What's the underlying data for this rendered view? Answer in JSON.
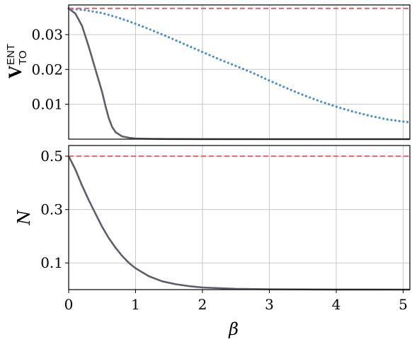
{
  "colors": {
    "series_dark": "#5f5f6b",
    "series_dotted": "#4a90d0",
    "reference": "#e06a6a"
  },
  "chart_data": [
    {
      "type": "line",
      "ylabel_main": "V",
      "ylabel_sup": "ENT",
      "ylabel_sub": "TO",
      "xlim": [
        0,
        5.1
      ],
      "ylim": [
        0,
        0.0385
      ],
      "yticks": [
        "0.01",
        "0.02",
        "0.03"
      ],
      "ytick_values": [
        0.01,
        0.02,
        0.03
      ],
      "grid": true,
      "series": [
        {
          "style": "solid",
          "x": [
            0,
            0.1,
            0.2,
            0.3,
            0.4,
            0.5,
            0.55,
            0.6,
            0.65,
            0.7,
            0.8,
            0.9,
            1.0,
            1.2,
            1.5,
            2.0,
            3.0,
            4.0,
            5.1
          ],
          "y": [
            0.0375,
            0.036,
            0.0325,
            0.0265,
            0.02,
            0.0135,
            0.0095,
            0.006,
            0.0035,
            0.002,
            0.0008,
            0.0004,
            0.0002,
            0.0001,
            5e-05,
            2e-05,
            0.0,
            0.0,
            0.0
          ]
        },
        {
          "style": "dotted",
          "x": [
            0,
            0.25,
            0.5,
            0.75,
            1.0,
            1.25,
            1.5,
            1.75,
            2.0,
            2.25,
            2.5,
            2.75,
            3.0,
            3.25,
            3.5,
            3.75,
            4.0,
            4.25,
            4.5,
            4.75,
            5.1
          ],
          "y": [
            0.0375,
            0.037,
            0.0362,
            0.0348,
            0.0331,
            0.0312,
            0.0292,
            0.0271,
            0.025,
            0.0229,
            0.021,
            0.019,
            0.0168,
            0.0147,
            0.0127,
            0.0109,
            0.0093,
            0.0079,
            0.0067,
            0.0057,
            0.0048
          ]
        },
        {
          "style": "dashed",
          "x": [
            0,
            5.1
          ],
          "y": [
            0.0375,
            0.0375
          ]
        }
      ]
    },
    {
      "type": "line",
      "ylabel": "N",
      "xlabel": "β",
      "xlim": [
        0,
        5.1
      ],
      "ylim": [
        0,
        0.54
      ],
      "xticks": [
        "0",
        "1",
        "2",
        "3",
        "4",
        "5"
      ],
      "xtick_values": [
        0,
        1,
        2,
        3,
        4,
        5
      ],
      "yticks": [
        "0.1",
        "0.3",
        "0.5"
      ],
      "ytick_values": [
        0.1,
        0.3,
        0.5
      ],
      "grid": true,
      "series": [
        {
          "style": "solid",
          "x": [
            0,
            0.1,
            0.2,
            0.3,
            0.4,
            0.5,
            0.6,
            0.7,
            0.8,
            0.9,
            1.0,
            1.2,
            1.4,
            1.6,
            1.8,
            2.0,
            2.5,
            3.0,
            4.0,
            5.1
          ],
          "y": [
            0.5,
            0.45,
            0.39,
            0.335,
            0.285,
            0.235,
            0.193,
            0.157,
            0.126,
            0.1,
            0.08,
            0.05,
            0.031,
            0.02,
            0.013,
            0.008,
            0.003,
            0.0012,
            0.0002,
            0.0
          ]
        },
        {
          "style": "dashed",
          "x": [
            0,
            5.1
          ],
          "y": [
            0.5,
            0.5
          ]
        }
      ]
    }
  ]
}
